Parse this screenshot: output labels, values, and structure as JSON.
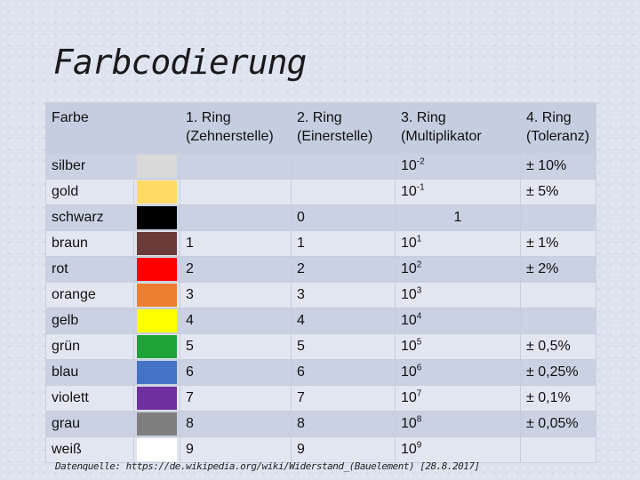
{
  "title": "Farbcodierung",
  "table": {
    "headers": {
      "farbe": "Farbe",
      "ring1_line1": "1. Ring",
      "ring1_line2": "(Zehnerstelle)",
      "ring2_line1": "2. Ring",
      "ring2_line2": "(Einerstelle)",
      "ring3_line1": "3. Ring",
      "ring3_line2": "(Multiplikator",
      "ring4_line1": "4. Ring",
      "ring4_line2": "(Toleranz)"
    },
    "rows": [
      {
        "name": "silber",
        "color": "#d9d9d9",
        "r1": "",
        "r2": "",
        "r3_base": "10",
        "r3_exp": "-2",
        "r4": "± 10%"
      },
      {
        "name": "gold",
        "color": "#ffd966",
        "r1": "",
        "r2": "",
        "r3_base": "10",
        "r3_exp": "-1",
        "r4": "± 5%"
      },
      {
        "name": "schwarz",
        "color": "#000000",
        "r1": "",
        "r2": "0",
        "r3_base": "1",
        "r3_exp": "",
        "r4": ""
      },
      {
        "name": "braun",
        "color": "#6b3a3a",
        "r1": "1",
        "r2": "1",
        "r3_base": "10",
        "r3_exp": "1",
        "r4": "± 1%"
      },
      {
        "name": "rot",
        "color": "#ff0000",
        "r1": "2",
        "r2": "2",
        "r3_base": "10",
        "r3_exp": "2",
        "r4": "± 2%"
      },
      {
        "name": "orange",
        "color": "#ed7d31",
        "r1": "3",
        "r2": "3",
        "r3_base": "10",
        "r3_exp": "3",
        "r4": ""
      },
      {
        "name": "gelb",
        "color": "#ffff00",
        "r1": "4",
        "r2": "4",
        "r3_base": "10",
        "r3_exp": "4",
        "r4": ""
      },
      {
        "name": "grün",
        "color": "#1fa339",
        "r1": "5",
        "r2": "5",
        "r3_base": "10",
        "r3_exp": "5",
        "r4": "± 0,5%"
      },
      {
        "name": "blau",
        "color": "#4472c4",
        "r1": "6",
        "r2": "6",
        "r3_base": "10",
        "r3_exp": "6",
        "r4": "± 0,25%"
      },
      {
        "name": "violett",
        "color": "#7030a0",
        "r1": "7",
        "r2": "7",
        "r3_base": "10",
        "r3_exp": "7",
        "r4": "± 0,1%"
      },
      {
        "name": "grau",
        "color": "#7f7f7f",
        "r1": "8",
        "r2": "8",
        "r3_base": "10",
        "r3_exp": "8",
        "r4": "± 0,05%"
      },
      {
        "name": "weiß",
        "color": "#ffffff",
        "r1": "9",
        "r2": "9",
        "r3_base": "10",
        "r3_exp": "9",
        "r4": ""
      }
    ]
  },
  "source": "Datenquelle: https://de.wikipedia.org/wiki/Widerstand_(Bauelement) [28.8.2017]"
}
